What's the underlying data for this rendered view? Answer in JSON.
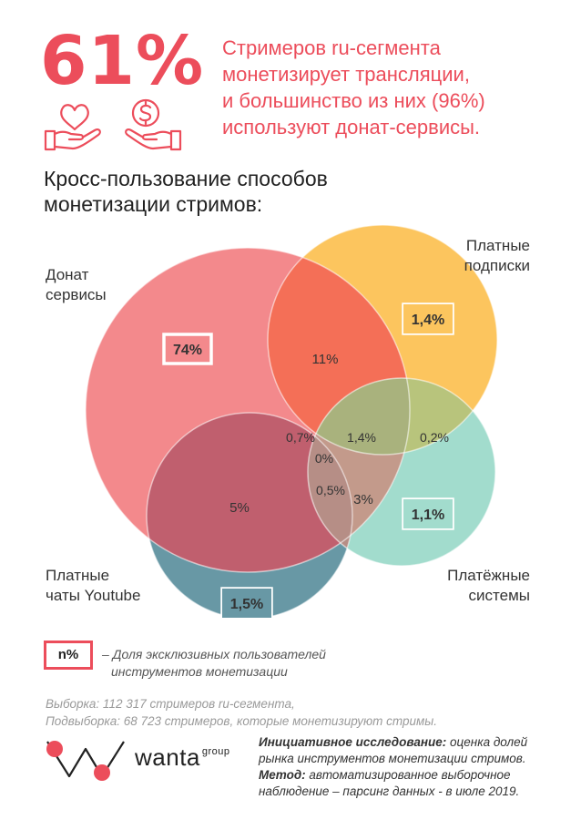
{
  "header": {
    "big_percent": "61%",
    "headline_lines": [
      "Стримеров ru-сегмента",
      "монетизирует трансляции,",
      "и большинство из них (96%)",
      "используют донат-сервисы."
    ]
  },
  "icons": [
    "heart-in-hands-icon",
    "coin-in-hands-icon"
  ],
  "subtitle_lines": [
    "Кросс-пользование способов",
    "монетизации стримов:"
  ],
  "sets": {
    "donat": [
      "Донат",
      "сервисы"
    ],
    "subs": [
      "Платные",
      "подписки"
    ],
    "payments": [
      "Платёжные",
      "системы"
    ],
    "youtube": [
      "Платные",
      "чаты Youtube"
    ]
  },
  "regions": {
    "donat_only": "74%",
    "subs_only": "1,4%",
    "payments_only": "1,1%",
    "youtube_only": "1,5%",
    "donat_subs": "11%",
    "donat_subs_pay": "0,7%",
    "all_four": "0%",
    "subs_pay_center": "1,4%",
    "subs_pay": "0,2%",
    "donat_youtube": "5%",
    "donat_youtube_pay": "0,5%",
    "donat_pay": "3%"
  },
  "legend": {
    "box_label": "n%",
    "text_lines": [
      "– Доля эксклюзивных пользователей",
      "инструментов монетизации"
    ]
  },
  "sample_lines": [
    "Выборка: 112 317 стримеров ru-сегмента,",
    "Подвыборка: 68 723 стримеров, которые монетизируют  стримы."
  ],
  "logo": {
    "name": "wanta",
    "suffix": "group"
  },
  "method": {
    "initiative_label": "Инициативное исследование:",
    "initiative_text_1": " оценка долей",
    "initiative_text_2": "рынка инструментов монетизации стримов.",
    "method_label": "Метод:",
    "method_text_1": " автоматизированное выборочное",
    "method_text_2": "наблюдение – парсинг данных - в июле 2019."
  },
  "colors": {
    "accent": "#ec4d5b",
    "donat": "#f3898c",
    "subs": "#fcc55e",
    "payments": "#a2dccd",
    "youtube": "#6898a5"
  }
}
